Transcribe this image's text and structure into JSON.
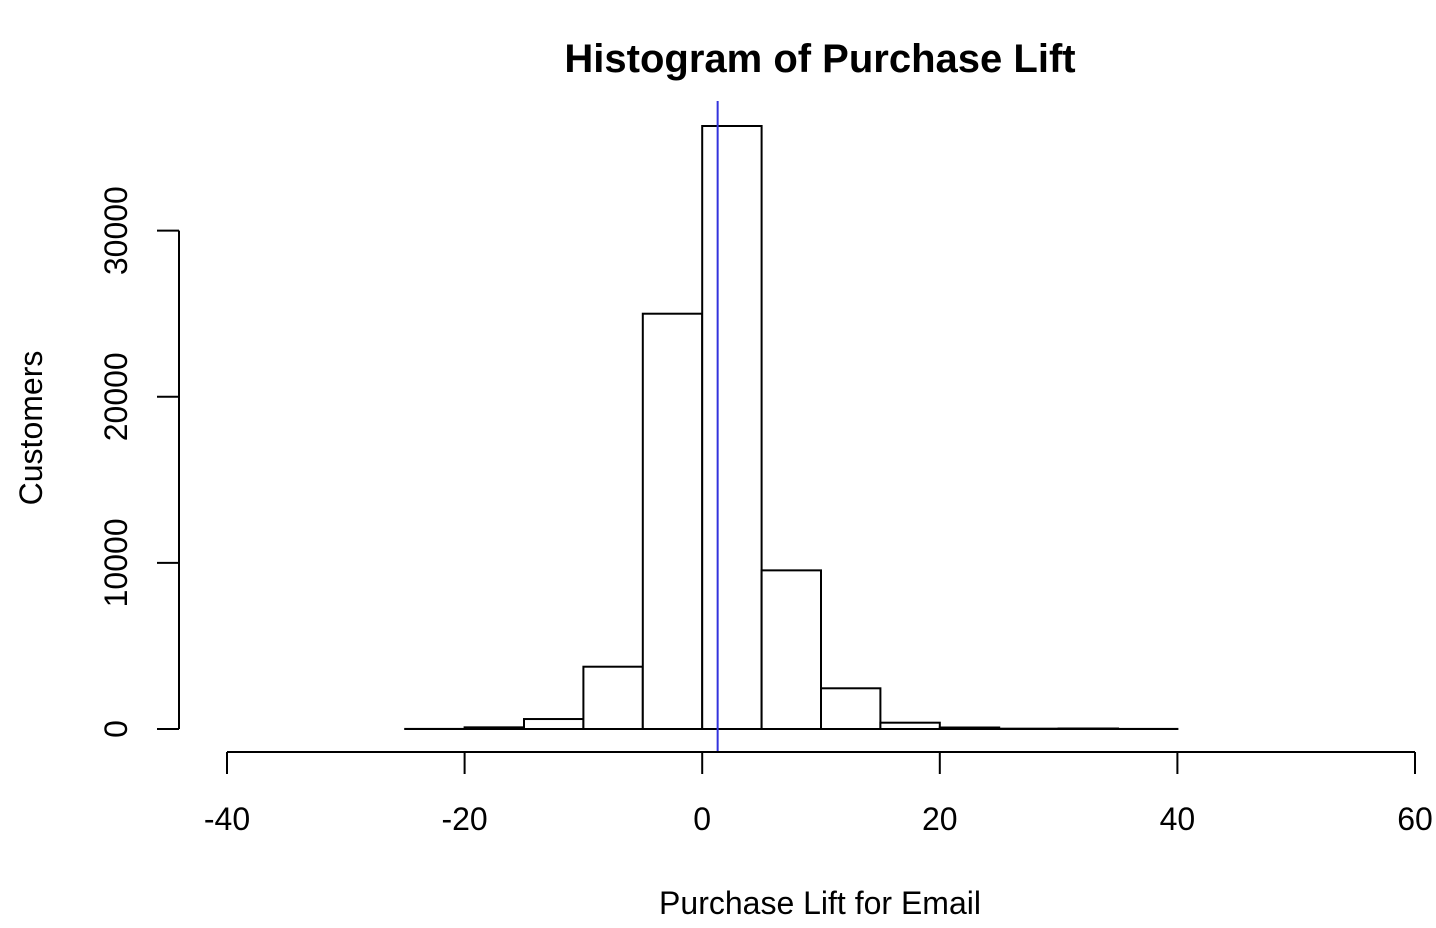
{
  "chart_data": {
    "type": "bar",
    "title": "Histogram of Purchase Lift",
    "xlabel": "Purchase Lift for Email",
    "ylabel": "Customers",
    "xlim": [
      -40,
      60
    ],
    "ylim": [
      0,
      36300
    ],
    "x_ticks": [
      -40,
      -20,
      0,
      20,
      40,
      60
    ],
    "y_ticks": [
      0,
      10000,
      20000,
      30000
    ],
    "bin_edges": [
      -40,
      -35,
      -30,
      -25,
      -20,
      -15,
      -10,
      -5,
      0,
      5,
      10,
      15,
      20,
      25,
      30,
      35,
      40,
      45,
      50,
      55,
      60
    ],
    "values": [
      0,
      0,
      0,
      5,
      100,
      600,
      3750,
      25000,
      36300,
      9550,
      2450,
      380,
      90,
      20,
      30,
      5,
      0,
      0,
      0,
      0
    ],
    "reference_line": {
      "x": 1.3,
      "color": "#3333dd"
    },
    "grid": false,
    "bar_fill": "#ffffff",
    "bar_stroke": "#000000"
  }
}
